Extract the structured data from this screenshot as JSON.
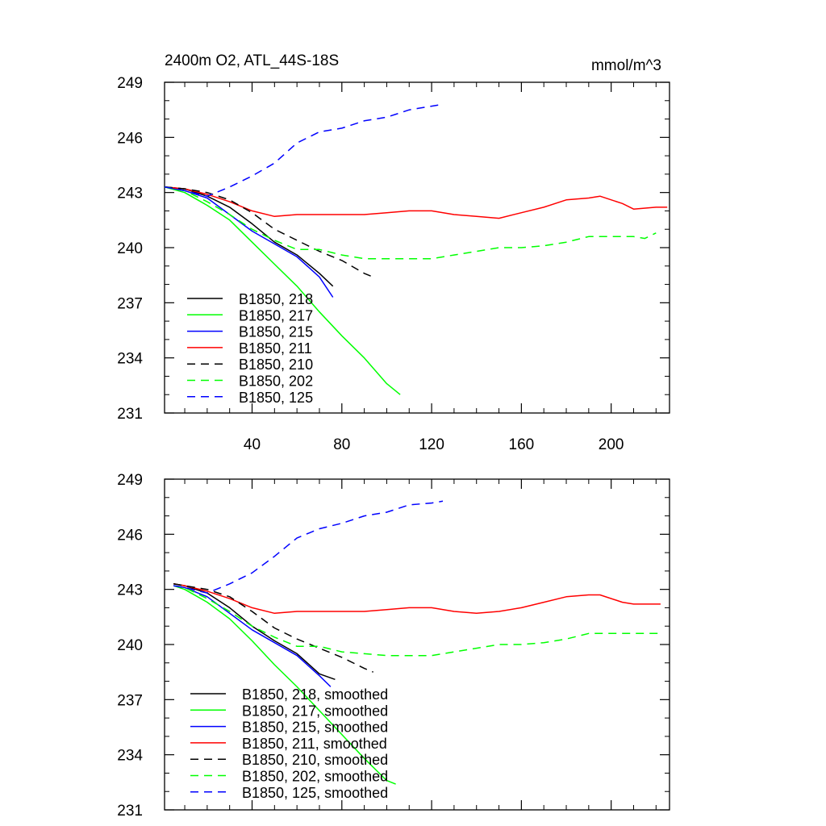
{
  "chart_data": [
    {
      "type": "line",
      "title": "2400m O2, ATL_44S-18S",
      "units": "mmol/m^3",
      "xlabel": "",
      "ylabel": "",
      "xlim": [
        1,
        226
      ],
      "ylim": [
        231,
        249
      ],
      "x_ticks": [
        40,
        80,
        120,
        160,
        200
      ],
      "y_ticks": [
        231,
        234,
        237,
        240,
        243,
        246,
        249
      ],
      "show_x_tick_labels": true,
      "legend_position": "bottom-left",
      "grid": false,
      "series": [
        {
          "name": "B1850, 218",
          "color": "#000000",
          "dash": "solid",
          "points": [
            [
              1,
              243.3
            ],
            [
              10,
              243.2
            ],
            [
              20,
              242.8
            ],
            [
              30,
              242.2
            ],
            [
              40,
              241.3
            ],
            [
              50,
              240.3
            ],
            [
              60,
              239.6
            ],
            [
              70,
              238.6
            ],
            [
              76,
              237.9
            ]
          ]
        },
        {
          "name": "B1850, 217",
          "color": "#00ff00",
          "dash": "solid",
          "points": [
            [
              1,
              243.3
            ],
            [
              10,
              243.0
            ],
            [
              20,
              242.3
            ],
            [
              30,
              241.5
            ],
            [
              40,
              240.3
            ],
            [
              50,
              239.1
            ],
            [
              60,
              237.9
            ],
            [
              70,
              236.5
            ],
            [
              80,
              235.2
            ],
            [
              90,
              234.0
            ],
            [
              100,
              232.6
            ],
            [
              106,
              232.0
            ]
          ]
        },
        {
          "name": "B1850, 215",
          "color": "#0000ff",
          "dash": "solid",
          "points": [
            [
              1,
              243.3
            ],
            [
              10,
              243.1
            ],
            [
              20,
              242.7
            ],
            [
              30,
              241.8
            ],
            [
              40,
              240.9
            ],
            [
              50,
              240.2
            ],
            [
              60,
              239.5
            ],
            [
              70,
              238.4
            ],
            [
              76,
              237.3
            ]
          ]
        },
        {
          "name": "B1850, 211",
          "color": "#ff0000",
          "dash": "solid",
          "points": [
            [
              1,
              243.3
            ],
            [
              10,
              243.2
            ],
            [
              20,
              242.9
            ],
            [
              30,
              242.5
            ],
            [
              40,
              242.0
            ],
            [
              50,
              241.7
            ],
            [
              60,
              241.8
            ],
            [
              70,
              241.8
            ],
            [
              80,
              241.8
            ],
            [
              90,
              241.8
            ],
            [
              100,
              241.9
            ],
            [
              110,
              242.0
            ],
            [
              120,
              242.0
            ],
            [
              130,
              241.8
            ],
            [
              140,
              241.7
            ],
            [
              150,
              241.6
            ],
            [
              160,
              241.9
            ],
            [
              170,
              242.2
            ],
            [
              180,
              242.6
            ],
            [
              190,
              242.7
            ],
            [
              195,
              242.8
            ],
            [
              205,
              242.4
            ],
            [
              210,
              242.1
            ],
            [
              220,
              242.2
            ],
            [
              225,
              242.2
            ]
          ]
        },
        {
          "name": "B1850, 210",
          "color": "#000000",
          "dash": "dashed",
          "points": [
            [
              1,
              243.3
            ],
            [
              10,
              243.2
            ],
            [
              20,
              243.0
            ],
            [
              30,
              242.6
            ],
            [
              40,
              241.9
            ],
            [
              50,
              241.0
            ],
            [
              60,
              240.4
            ],
            [
              70,
              239.8
            ],
            [
              80,
              239.3
            ],
            [
              90,
              238.6
            ],
            [
              94,
              238.4
            ]
          ]
        },
        {
          "name": "B1850, 202",
          "color": "#00ff00",
          "dash": "dashed",
          "points": [
            [
              1,
              243.3
            ],
            [
              10,
              243.1
            ],
            [
              20,
              242.5
            ],
            [
              30,
              241.8
            ],
            [
              40,
              241.0
            ],
            [
              50,
              240.4
            ],
            [
              60,
              239.9
            ],
            [
              70,
              239.9
            ],
            [
              80,
              239.6
            ],
            [
              90,
              239.4
            ],
            [
              100,
              239.4
            ],
            [
              110,
              239.4
            ],
            [
              120,
              239.4
            ],
            [
              130,
              239.6
            ],
            [
              140,
              239.8
            ],
            [
              150,
              240.0
            ],
            [
              160,
              240.0
            ],
            [
              170,
              240.1
            ],
            [
              180,
              240.3
            ],
            [
              190,
              240.6
            ],
            [
              200,
              240.6
            ],
            [
              210,
              240.6
            ],
            [
              215,
              240.5
            ],
            [
              220,
              240.8
            ]
          ]
        },
        {
          "name": "B1850, 125",
          "color": "#0000ff",
          "dash": "dashed",
          "points": [
            [
              1,
              243.3
            ],
            [
              10,
              243.1
            ],
            [
              20,
              242.8
            ],
            [
              30,
              243.3
            ],
            [
              40,
              243.9
            ],
            [
              50,
              244.6
            ],
            [
              60,
              245.7
            ],
            [
              70,
              246.3
            ],
            [
              80,
              246.5
            ],
            [
              90,
              246.9
            ],
            [
              100,
              247.1
            ],
            [
              110,
              247.5
            ],
            [
              120,
              247.7
            ],
            [
              125,
              247.8
            ]
          ]
        }
      ],
      "legend": [
        {
          "label": "B1850, 218",
          "series": 0
        },
        {
          "label": "B1850, 217",
          "series": 1
        },
        {
          "label": "B1850, 215",
          "series": 2
        },
        {
          "label": "B1850, 211",
          "series": 3
        },
        {
          "label": "B1850, 210",
          "series": 4
        },
        {
          "label": "B1850, 202",
          "series": 5
        },
        {
          "label": "B1850, 125",
          "series": 6
        }
      ]
    },
    {
      "type": "line",
      "title": "",
      "units": "",
      "xlabel": "",
      "ylabel": "",
      "xlim": [
        1,
        226
      ],
      "ylim": [
        231,
        249
      ],
      "x_ticks": [
        40,
        80,
        120,
        160,
        200
      ],
      "y_ticks": [
        231,
        234,
        237,
        240,
        243,
        246,
        249
      ],
      "show_x_tick_labels": false,
      "legend_position": "bottom-left",
      "grid": false,
      "series": [
        {
          "name": "B1850, 218, smoothed",
          "color": "#000000",
          "dash": "solid",
          "points": [
            [
              5,
              243.3
            ],
            [
              10,
              243.2
            ],
            [
              20,
              242.8
            ],
            [
              30,
              242.0
            ],
            [
              40,
              241.0
            ],
            [
              50,
              240.2
            ],
            [
              60,
              239.5
            ],
            [
              70,
              238.4
            ],
            [
              77,
              238.1
            ]
          ]
        },
        {
          "name": "B1850, 217, smoothed",
          "color": "#00ff00",
          "dash": "solid",
          "points": [
            [
              5,
              243.2
            ],
            [
              10,
              243.0
            ],
            [
              20,
              242.3
            ],
            [
              30,
              241.4
            ],
            [
              40,
              240.2
            ],
            [
              50,
              238.9
            ],
            [
              60,
              237.7
            ],
            [
              70,
              236.4
            ],
            [
              80,
              235.1
            ],
            [
              90,
              233.8
            ],
            [
              100,
              232.6
            ],
            [
              104,
              232.4
            ]
          ]
        },
        {
          "name": "B1850, 215, smoothed",
          "color": "#0000ff",
          "dash": "solid",
          "points": [
            [
              5,
              243.2
            ],
            [
              10,
              243.1
            ],
            [
              20,
              242.6
            ],
            [
              30,
              241.7
            ],
            [
              40,
              240.8
            ],
            [
              50,
              240.1
            ],
            [
              60,
              239.4
            ],
            [
              70,
              238.3
            ],
            [
              75,
              237.7
            ]
          ]
        },
        {
          "name": "B1850, 211, smoothed",
          "color": "#ff0000",
          "dash": "solid",
          "points": [
            [
              5,
              243.3
            ],
            [
              10,
              243.2
            ],
            [
              20,
              242.9
            ],
            [
              30,
              242.5
            ],
            [
              40,
              242.0
            ],
            [
              50,
              241.7
            ],
            [
              60,
              241.8
            ],
            [
              70,
              241.8
            ],
            [
              80,
              241.8
            ],
            [
              90,
              241.8
            ],
            [
              100,
              241.9
            ],
            [
              110,
              242.0
            ],
            [
              120,
              242.0
            ],
            [
              130,
              241.8
            ],
            [
              140,
              241.7
            ],
            [
              150,
              241.8
            ],
            [
              160,
              242.0
            ],
            [
              170,
              242.3
            ],
            [
              180,
              242.6
            ],
            [
              190,
              242.7
            ],
            [
              195,
              242.7
            ],
            [
              205,
              242.3
            ],
            [
              210,
              242.2
            ],
            [
              222,
              242.2
            ]
          ]
        },
        {
          "name": "B1850, 210, smoothed",
          "color": "#000000",
          "dash": "dashed",
          "points": [
            [
              5,
              243.3
            ],
            [
              10,
              243.2
            ],
            [
              20,
              243.0
            ],
            [
              30,
              242.6
            ],
            [
              40,
              241.8
            ],
            [
              50,
              240.9
            ],
            [
              60,
              240.3
            ],
            [
              70,
              239.8
            ],
            [
              80,
              239.3
            ],
            [
              90,
              238.7
            ],
            [
              94,
              238.5
            ]
          ]
        },
        {
          "name": "B1850, 202, smoothed",
          "color": "#00ff00",
          "dash": "dashed",
          "points": [
            [
              5,
              243.2
            ],
            [
              10,
              243.1
            ],
            [
              20,
              242.5
            ],
            [
              30,
              241.8
            ],
            [
              40,
              241.0
            ],
            [
              50,
              240.4
            ],
            [
              60,
              239.9
            ],
            [
              70,
              239.9
            ],
            [
              80,
              239.6
            ],
            [
              90,
              239.5
            ],
            [
              100,
              239.4
            ],
            [
              110,
              239.4
            ],
            [
              120,
              239.4
            ],
            [
              130,
              239.6
            ],
            [
              140,
              239.8
            ],
            [
              150,
              240.0
            ],
            [
              160,
              240.0
            ],
            [
              170,
              240.1
            ],
            [
              180,
              240.3
            ],
            [
              190,
              240.6
            ],
            [
              200,
              240.6
            ],
            [
              210,
              240.6
            ],
            [
              222,
              240.6
            ]
          ]
        },
        {
          "name": "B1850, 125, smoothed",
          "color": "#0000ff",
          "dash": "dashed",
          "points": [
            [
              5,
              243.2
            ],
            [
              10,
              243.1
            ],
            [
              20,
              242.8
            ],
            [
              30,
              243.3
            ],
            [
              40,
              243.9
            ],
            [
              50,
              244.8
            ],
            [
              60,
              245.8
            ],
            [
              70,
              246.3
            ],
            [
              80,
              246.6
            ],
            [
              90,
              247.0
            ],
            [
              100,
              247.2
            ],
            [
              110,
              247.6
            ],
            [
              120,
              247.7
            ],
            [
              125,
              247.8
            ]
          ]
        }
      ],
      "legend": [
        {
          "label": "B1850, 218, smoothed",
          "series": 0
        },
        {
          "label": "B1850, 217, smoothed",
          "series": 1
        },
        {
          "label": "B1850, 215, smoothed",
          "series": 2
        },
        {
          "label": "B1850, 211, smoothed",
          "series": 3
        },
        {
          "label": "B1850, 210, smoothed",
          "series": 4
        },
        {
          "label": "B1850, 202, smoothed",
          "series": 5
        },
        {
          "label": "B1850, 125, smoothed",
          "series": 6
        }
      ]
    }
  ]
}
